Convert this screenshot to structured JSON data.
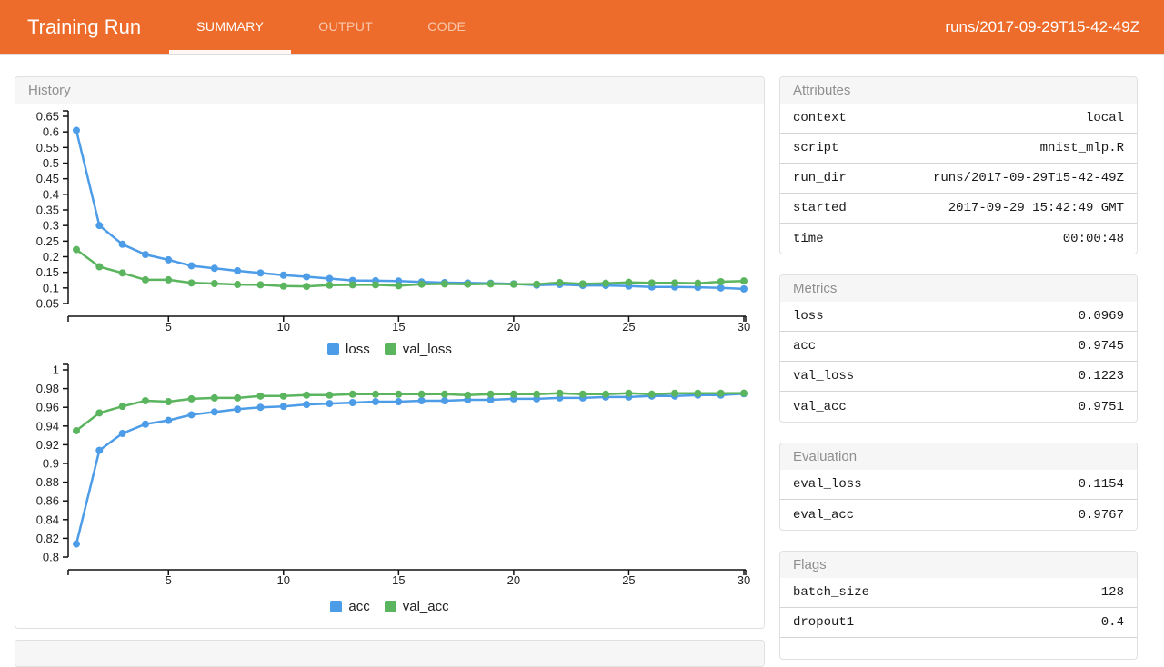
{
  "header": {
    "title": "Training Run",
    "tabs": [
      {
        "label": "SUMMARY",
        "active": true
      },
      {
        "label": "OUTPUT",
        "active": false
      },
      {
        "label": "CODE",
        "active": false
      }
    ],
    "run_id": "runs/2017-09-29T15-42-49Z",
    "accent_color": "#ED6C2B"
  },
  "history": {
    "title": "History"
  },
  "chart_data": [
    {
      "type": "line",
      "title": "",
      "xlabel": "",
      "ylabel": "",
      "x_range": [
        1,
        30
      ],
      "xticks": [
        5,
        10,
        15,
        20,
        25,
        30
      ],
      "ylim": [
        0.05,
        0.65
      ],
      "ytick_step": 0.05,
      "grid": false,
      "legend_position": "bottom",
      "series": [
        {
          "name": "loss",
          "color": "#4D9CE8",
          "values": [
            0.605,
            0.3,
            0.24,
            0.207,
            0.19,
            0.171,
            0.163,
            0.155,
            0.148,
            0.141,
            0.136,
            0.13,
            0.124,
            0.123,
            0.122,
            0.119,
            0.117,
            0.116,
            0.115,
            0.113,
            0.109,
            0.111,
            0.108,
            0.108,
            0.106,
            0.103,
            0.103,
            0.102,
            0.1,
            0.0969
          ]
        },
        {
          "name": "val_loss",
          "color": "#5BB55E",
          "values": [
            0.223,
            0.168,
            0.148,
            0.126,
            0.126,
            0.116,
            0.114,
            0.111,
            0.11,
            0.106,
            0.105,
            0.109,
            0.11,
            0.11,
            0.107,
            0.112,
            0.113,
            0.112,
            0.113,
            0.112,
            0.112,
            0.117,
            0.113,
            0.115,
            0.118,
            0.116,
            0.116,
            0.115,
            0.12,
            0.1223
          ]
        }
      ]
    },
    {
      "type": "line",
      "title": "",
      "xlabel": "",
      "ylabel": "",
      "x_range": [
        1,
        30
      ],
      "xticks": [
        5,
        10,
        15,
        20,
        25,
        30
      ],
      "ylim": [
        0.8,
        1.0
      ],
      "ytick_step": 0.02,
      "grid": false,
      "legend_position": "bottom",
      "series": [
        {
          "name": "acc",
          "color": "#4D9CE8",
          "values": [
            0.814,
            0.914,
            0.932,
            0.942,
            0.946,
            0.952,
            0.955,
            0.958,
            0.96,
            0.961,
            0.963,
            0.964,
            0.965,
            0.966,
            0.966,
            0.967,
            0.967,
            0.968,
            0.968,
            0.969,
            0.969,
            0.97,
            0.97,
            0.971,
            0.971,
            0.972,
            0.972,
            0.973,
            0.973,
            0.9745
          ]
        },
        {
          "name": "val_acc",
          "color": "#5BB55E",
          "values": [
            0.935,
            0.954,
            0.961,
            0.967,
            0.966,
            0.969,
            0.97,
            0.97,
            0.972,
            0.972,
            0.973,
            0.973,
            0.974,
            0.974,
            0.974,
            0.974,
            0.974,
            0.973,
            0.974,
            0.974,
            0.974,
            0.975,
            0.974,
            0.974,
            0.975,
            0.974,
            0.975,
            0.975,
            0.975,
            0.9751
          ]
        }
      ]
    }
  ],
  "panels": {
    "attributes": {
      "title": "Attributes",
      "rows": [
        {
          "key": "context",
          "value": "local"
        },
        {
          "key": "script",
          "value": "mnist_mlp.R"
        },
        {
          "key": "run_dir",
          "value": "runs/2017-09-29T15-42-49Z"
        },
        {
          "key": "started",
          "value": "2017-09-29 15:42:49 GMT"
        },
        {
          "key": "time",
          "value": "00:00:48"
        }
      ]
    },
    "metrics": {
      "title": "Metrics",
      "rows": [
        {
          "key": "loss",
          "value": "0.0969"
        },
        {
          "key": "acc",
          "value": "0.9745"
        },
        {
          "key": "val_loss",
          "value": "0.1223"
        },
        {
          "key": "val_acc",
          "value": "0.9751"
        }
      ]
    },
    "evaluation": {
      "title": "Evaluation",
      "rows": [
        {
          "key": "eval_loss",
          "value": "0.1154"
        },
        {
          "key": "eval_acc",
          "value": "0.9767"
        }
      ]
    },
    "flags": {
      "title": "Flags",
      "rows": [
        {
          "key": "batch_size",
          "value": "128"
        },
        {
          "key": "dropout1",
          "value": "0.4"
        }
      ]
    }
  }
}
